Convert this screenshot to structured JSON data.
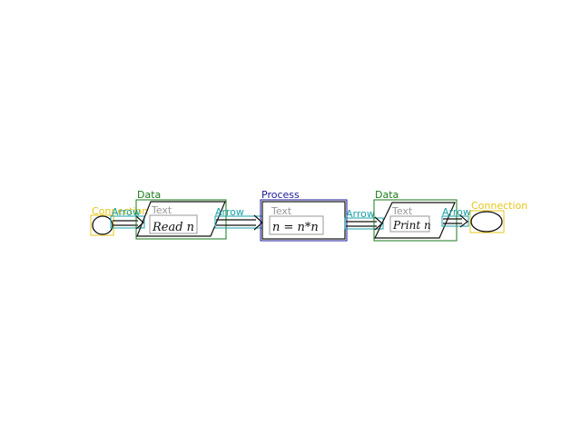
{
  "colors": {
    "data_box": "#1a7a1a",
    "process_box": "#1a1a9a",
    "connection_box": "#e6c619",
    "arrow_box": "#19a0a8",
    "text_box": "#9a9a9a",
    "ink": "#111111"
  },
  "nodes": {
    "start_connection": {
      "label": "Connection"
    },
    "arrow_1": {
      "label": "Arrow"
    },
    "data_1": {
      "label": "Data",
      "text_label": "Text",
      "handwriting": "Read n"
    },
    "arrow_2": {
      "label": "Arrow"
    },
    "process_1": {
      "label": "Process",
      "text_label": "Text",
      "handwriting": "n = n*n"
    },
    "arrow_3": {
      "label": "Arrow"
    },
    "data_2": {
      "label": "Data",
      "text_label": "Text",
      "handwriting": "Print n"
    },
    "arrow_4": {
      "label": "Arrow"
    },
    "end_connection": {
      "label": "Connection"
    }
  }
}
